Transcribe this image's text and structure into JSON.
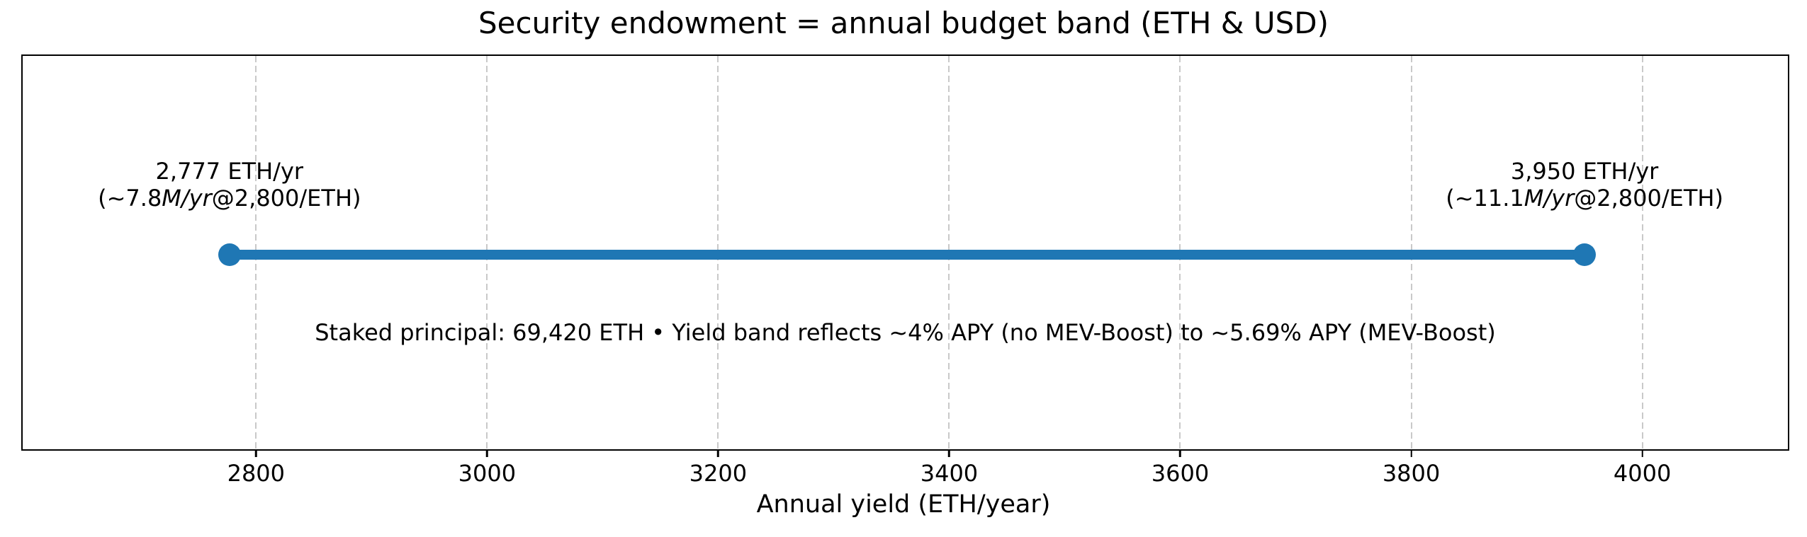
{
  "chart_data": {
    "type": "line",
    "title": "Security endowment = annual budget band (ETH & USD)",
    "xlabel": "Annual yield (ETH/year)",
    "xlim": [
      2598,
      4126
    ],
    "xticks": [
      2800,
      3000,
      3200,
      3400,
      3600,
      3800,
      4000
    ],
    "grid": {
      "axis": "x",
      "style": "dashed",
      "color": "#c9c9c9"
    },
    "series": [
      {
        "name": "annual budget band",
        "kind": "horizontal-range",
        "x_start": 2777,
        "x_end": 3950,
        "color": "#1f77b4",
        "marker": "circle"
      }
    ],
    "annotations": {
      "left": {
        "x": 2777,
        "line1": "2,777 ETH/yr",
        "line2_pre": "(~7.8",
        "line2_italic": "M/yr",
        "line2_post": "@2,800/ETH)"
      },
      "right": {
        "x": 3950,
        "line1": "3,950 ETH/yr",
        "line2_pre": "(~11.1",
        "line2_italic": "M/yr",
        "line2_post": "@2,800/ETH)"
      },
      "center": {
        "text": "Staked principal: 69,420 ETH • Yield band reflects ~4% APY (no MEV-Boost) to ~5.69% APY (MEV-Boost)"
      }
    },
    "colors": {
      "band": "#1f77b4",
      "grid": "#c9c9c9",
      "spine": "#000000",
      "text": "#000000"
    }
  }
}
